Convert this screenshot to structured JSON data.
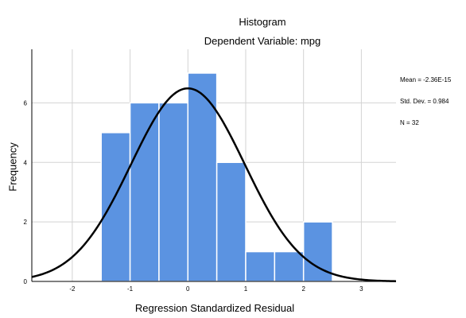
{
  "chart_data": {
    "type": "histogram",
    "title": "Histogram",
    "subtitle": "Dependent Variable: mpg",
    "xlabel": "Regression Standardized Residual",
    "ylabel": "Frequency",
    "stats": [
      "Mean = -2.36E-15",
      "Std. Dev. = 0.984",
      "N = 32"
    ],
    "xlim": [
      -2.7,
      3.6
    ],
    "ylim": [
      0,
      7.8
    ],
    "x_ticks": [
      -2,
      -1,
      0,
      1,
      2,
      3
    ],
    "y_ticks": [
      0,
      2,
      4,
      6
    ],
    "bins": [
      {
        "x0": -1.5,
        "x1": -1.0,
        "count": 5
      },
      {
        "x0": -1.0,
        "x1": -0.5,
        "count": 6
      },
      {
        "x0": -0.5,
        "x1": 0.0,
        "count": 6
      },
      {
        "x0": 0.0,
        "x1": 0.5,
        "count": 7
      },
      {
        "x0": 0.5,
        "x1": 1.0,
        "count": 4
      },
      {
        "x0": 1.0,
        "x1": 1.5,
        "count": 1
      },
      {
        "x0": 1.5,
        "x1": 2.0,
        "count": 1
      },
      {
        "x0": 2.0,
        "x1": 2.5,
        "count": 2
      }
    ],
    "normal_curve": {
      "mean": 0.0,
      "sd": 0.984,
      "n": 32,
      "bin_width": 0.5
    },
    "grid": true,
    "legend": "top-right",
    "colors": {
      "bar": "#5b93e1",
      "bar_edge": "#ffffff",
      "curve": "#000000",
      "grid": "#d3d3d3"
    }
  }
}
